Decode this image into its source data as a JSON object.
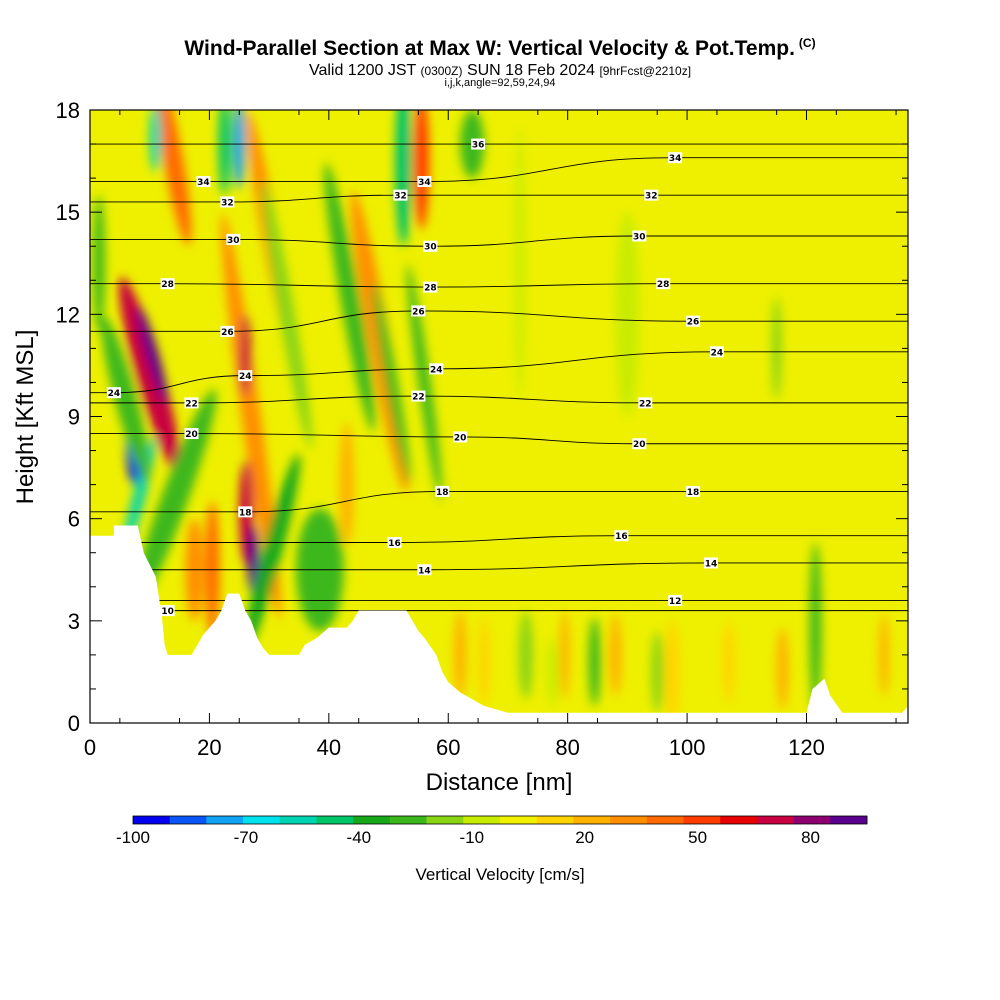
{
  "header": {
    "title": "Wind-Parallel Section at Max W: Vertical Velocity & Pot.Temp.",
    "title_mark": "(C)",
    "valid_prefix": "Valid 1200 JST",
    "valid_utc": "(0300Z)",
    "valid_date": "SUN 18 Feb 2024",
    "valid_fcst": "[9hrFcst@2210z]",
    "params": "i,j,k,angle=92,59,24,94"
  },
  "chart_data": {
    "type": "heatmap",
    "xlabel": "Distance [nm]",
    "ylabel": "Height [Kft MSL]",
    "xlim": [
      0,
      137
    ],
    "ylim": [
      0,
      18
    ],
    "x_ticks": [
      0,
      20,
      40,
      60,
      80,
      100,
      120
    ],
    "y_ticks": [
      0,
      3,
      6,
      9,
      12,
      15,
      18
    ],
    "colorbar": {
      "label": "Vertical Velocity [cm/s]",
      "tick_labels": [
        "-100",
        "-70",
        "-40",
        "-10",
        "20",
        "50",
        "80"
      ],
      "tick_values": [
        -100,
        -70,
        -40,
        -10,
        20,
        50,
        80
      ],
      "range": [
        -100,
        95
      ],
      "colors": [
        "#0000ee",
        "#0a55f5",
        "#12a3f5",
        "#00e2ee",
        "#00d4b0",
        "#00c468",
        "#17a81a",
        "#3cb81c",
        "#8ad416",
        "#c8ec00",
        "#f2f200",
        "#ffd400",
        "#ffb100",
        "#ff8e00",
        "#ff6a00",
        "#ff3c00",
        "#e80000",
        "#c80040",
        "#8e0070",
        "#5a008e"
      ]
    },
    "field_color_default": "#eef000",
    "theta_contour_labels": [
      {
        "v": "36",
        "x": 65,
        "y": 17.0
      },
      {
        "v": "34",
        "x": 19,
        "y": 15.9
      },
      {
        "v": "34",
        "x": 56,
        "y": 15.9
      },
      {
        "v": "34",
        "x": 98,
        "y": 16.6
      },
      {
        "v": "32",
        "x": 23,
        "y": 15.3
      },
      {
        "v": "32",
        "x": 52,
        "y": 15.5
      },
      {
        "v": "32",
        "x": 94,
        "y": 15.5
      },
      {
        "v": "30",
        "x": 24,
        "y": 14.2
      },
      {
        "v": "30",
        "x": 57,
        "y": 14.0
      },
      {
        "v": "30",
        "x": 92,
        "y": 14.3
      },
      {
        "v": "28",
        "x": 13,
        "y": 12.9
      },
      {
        "v": "28",
        "x": 57,
        "y": 12.8
      },
      {
        "v": "28",
        "x": 96,
        "y": 12.9
      },
      {
        "v": "26",
        "x": 23,
        "y": 11.5
      },
      {
        "v": "26",
        "x": 55,
        "y": 12.1
      },
      {
        "v": "26",
        "x": 101,
        "y": 11.8
      },
      {
        "v": "24",
        "x": 4,
        "y": 9.7
      },
      {
        "v": "24",
        "x": 26,
        "y": 10.2
      },
      {
        "v": "24",
        "x": 58,
        "y": 10.4
      },
      {
        "v": "24",
        "x": 105,
        "y": 10.9
      },
      {
        "v": "22",
        "x": 17,
        "y": 9.4
      },
      {
        "v": "22",
        "x": 55,
        "y": 9.6
      },
      {
        "v": "22",
        "x": 93,
        "y": 9.4
      },
      {
        "v": "20",
        "x": 17,
        "y": 8.5
      },
      {
        "v": "20",
        "x": 62,
        "y": 8.4
      },
      {
        "v": "20",
        "x": 92,
        "y": 8.2
      },
      {
        "v": "18",
        "x": 26,
        "y": 6.2
      },
      {
        "v": "18",
        "x": 59,
        "y": 6.8
      },
      {
        "v": "18",
        "x": 101,
        "y": 6.8
      },
      {
        "v": "16",
        "x": 51,
        "y": 5.3
      },
      {
        "v": "16",
        "x": 89,
        "y": 5.5
      },
      {
        "v": "14",
        "x": 56,
        "y": 4.5
      },
      {
        "v": "14",
        "x": 104,
        "y": 4.7
      },
      {
        "v": "12",
        "x": 98,
        "y": 3.6
      },
      {
        "v": "10",
        "x": 13,
        "y": 3.3
      }
    ],
    "terrain_profile": [
      [
        0,
        5.5
      ],
      [
        4,
        5.5
      ],
      [
        4,
        5.8
      ],
      [
        8,
        5.8
      ],
      [
        9,
        5.0
      ],
      [
        11,
        4.3
      ],
      [
        12,
        3.2
      ],
      [
        12.5,
        2.3
      ],
      [
        13,
        2.0
      ],
      [
        17,
        2.0
      ],
      [
        18,
        2.3
      ],
      [
        19,
        2.6
      ],
      [
        21,
        3.0
      ],
      [
        22,
        3.3
      ],
      [
        23,
        3.8
      ],
      [
        25,
        3.8
      ],
      [
        26,
        3.3
      ],
      [
        27,
        3.0
      ],
      [
        28,
        2.5
      ],
      [
        29,
        2.2
      ],
      [
        30,
        2.0
      ],
      [
        35,
        2.0
      ],
      [
        36,
        2.3
      ],
      [
        38,
        2.5
      ],
      [
        40,
        2.8
      ],
      [
        43,
        2.8
      ],
      [
        44,
        3.0
      ],
      [
        45,
        3.3
      ],
      [
        53,
        3.3
      ],
      [
        54,
        3.0
      ],
      [
        55,
        2.7
      ],
      [
        56,
        2.5
      ],
      [
        58,
        2.0
      ],
      [
        59,
        1.5
      ],
      [
        60,
        1.2
      ],
      [
        62,
        0.9
      ],
      [
        64,
        0.7
      ],
      [
        66,
        0.5
      ],
      [
        68,
        0.4
      ],
      [
        70,
        0.3
      ],
      [
        120,
        0.3
      ],
      [
        121,
        1.0
      ],
      [
        123,
        1.3
      ],
      [
        124,
        0.8
      ],
      [
        126,
        0.3
      ],
      [
        136,
        0.3
      ],
      [
        137,
        0.5
      ]
    ],
    "vv_blobs": [
      {
        "x": 10,
        "y": 10.2,
        "rx": 2.2,
        "ry": 3.0,
        "v": 75,
        "rot": -16
      },
      {
        "x": 10.5,
        "y": 10.8,
        "rx": 1.0,
        "ry": 1.5,
        "v": 90,
        "rot": -16
      },
      {
        "x": 7.5,
        "y": 8.2,
        "rx": 1.4,
        "ry": 1.2,
        "v": -98,
        "rot": 0
      },
      {
        "x": 8,
        "y": 6.5,
        "rx": 1.0,
        "ry": 2.0,
        "v": -55,
        "rot": 15
      },
      {
        "x": 9.5,
        "y": 4.8,
        "rx": 0.6,
        "ry": 1.6,
        "v": -80,
        "rot": 15
      },
      {
        "x": 6,
        "y": 9.5,
        "rx": 1.8,
        "ry": 2.5,
        "v": -25,
        "rot": -15
      },
      {
        "x": 14,
        "y": 16.5,
        "rx": 1.6,
        "ry": 2.5,
        "v": 40,
        "rot": -10
      },
      {
        "x": 11,
        "y": 17.2,
        "rx": 1.0,
        "ry": 1.0,
        "v": -60,
        "rot": 0
      },
      {
        "x": 14,
        "y": 6.5,
        "rx": 2.2,
        "ry": 3.5,
        "v": -30,
        "rot": 20
      },
      {
        "x": 17.5,
        "y": 4.5,
        "rx": 1.5,
        "ry": 1.5,
        "v": 35,
        "rot": 0
      },
      {
        "x": 20.5,
        "y": 4.5,
        "rx": 1.2,
        "ry": 2.0,
        "v": 40,
        "rot": 0
      },
      {
        "x": 22.5,
        "y": 17.0,
        "rx": 1.0,
        "ry": 1.5,
        "v": -50,
        "rot": 0
      },
      {
        "x": 27,
        "y": 9.0,
        "rx": 1.6,
        "ry": 6.0,
        "v": 35,
        "rot": -8
      },
      {
        "x": 26,
        "y": 10.8,
        "rx": 0.9,
        "ry": 1.2,
        "v": 70,
        "rot": 0
      },
      {
        "x": 26.2,
        "y": 6.2,
        "rx": 1.2,
        "ry": 1.5,
        "v": 75,
        "rot": 0
      },
      {
        "x": 27.3,
        "y": 4.8,
        "rx": 1.0,
        "ry": 1.0,
        "v": 95,
        "rot": 0
      },
      {
        "x": 25,
        "y": 17.0,
        "rx": 1.0,
        "ry": 1.3,
        "v": -75,
        "rot": 0
      },
      {
        "x": 30.5,
        "y": 5.0,
        "rx": 1.6,
        "ry": 3.0,
        "v": -35,
        "rot": 15
      },
      {
        "x": 30,
        "y": 14.5,
        "rx": 1.4,
        "ry": 3.5,
        "v": 30,
        "rot": -10
      },
      {
        "x": 33,
        "y": 12.0,
        "rx": 1.3,
        "ry": 4.0,
        "v": -20,
        "rot": -10
      },
      {
        "x": 38.5,
        "y": 4.5,
        "rx": 4.0,
        "ry": 1.8,
        "v": -25,
        "rot": 0
      },
      {
        "x": 43.5,
        "y": 12.5,
        "rx": 1.6,
        "ry": 4.0,
        "v": -30,
        "rot": -10
      },
      {
        "x": 43,
        "y": 7.0,
        "rx": 1.2,
        "ry": 1.8,
        "v": 25,
        "rot": 0
      },
      {
        "x": 48.5,
        "y": 11.2,
        "rx": 1.8,
        "ry": 4.5,
        "v": 30,
        "rot": -10
      },
      {
        "x": 50.5,
        "y": 10.0,
        "rx": 1.0,
        "ry": 3.0,
        "v": -30,
        "rot": -10
      },
      {
        "x": 52.5,
        "y": 16.5,
        "rx": 1.4,
        "ry": 2.5,
        "v": -45,
        "rot": 0
      },
      {
        "x": 55.5,
        "y": 16.5,
        "rx": 1.3,
        "ry": 2.0,
        "v": 50,
        "rot": 0
      },
      {
        "x": 56,
        "y": 10.0,
        "rx": 1.0,
        "ry": 3.5,
        "v": -30,
        "rot": -8
      },
      {
        "x": 62,
        "y": 2.0,
        "rx": 1.0,
        "ry": 1.3,
        "v": 25,
        "rot": 0
      },
      {
        "x": 64,
        "y": 17.0,
        "rx": 2.0,
        "ry": 1.0,
        "v": -25,
        "rot": 0
      },
      {
        "x": 66,
        "y": 1.8,
        "rx": 1.0,
        "ry": 1.3,
        "v": 15,
        "rot": 0
      },
      {
        "x": 73,
        "y": 2.0,
        "rx": 1.2,
        "ry": 1.3,
        "v": -20,
        "rot": 0
      },
      {
        "x": 77.5,
        "y": 1.5,
        "rx": 1.0,
        "ry": 1.0,
        "v": -10,
        "rot": 0
      },
      {
        "x": 79.5,
        "y": 2.0,
        "rx": 0.8,
        "ry": 1.3,
        "v": 20,
        "rot": 0
      },
      {
        "x": 84.5,
        "y": 1.8,
        "rx": 1.0,
        "ry": 1.3,
        "v": -25,
        "rot": 0
      },
      {
        "x": 88,
        "y": 2.0,
        "rx": 1.0,
        "ry": 1.2,
        "v": 25,
        "rot": 0
      },
      {
        "x": 97.5,
        "y": 1.5,
        "rx": 1.3,
        "ry": 1.5,
        "v": 15,
        "rot": 0
      },
      {
        "x": 95,
        "y": 1.5,
        "rx": 1.0,
        "ry": 1.2,
        "v": -20,
        "rot": 0
      },
      {
        "x": 107,
        "y": 1.8,
        "rx": 1.0,
        "ry": 1.2,
        "v": 15,
        "rot": 0
      },
      {
        "x": 115,
        "y": 11.0,
        "rx": 0.8,
        "ry": 1.5,
        "v": -20,
        "rot": 0
      },
      {
        "x": 116,
        "y": 1.6,
        "rx": 1.0,
        "ry": 1.2,
        "v": 20,
        "rot": 0
      },
      {
        "x": 121.5,
        "y": 2.8,
        "rx": 1.0,
        "ry": 2.5,
        "v": -30,
        "rot": 0
      },
      {
        "x": 133,
        "y": 2.0,
        "rx": 0.8,
        "ry": 1.2,
        "v": 20,
        "rot": 0
      },
      {
        "x": 72,
        "y": 13.5,
        "rx": 0.8,
        "ry": 4.0,
        "v": -10,
        "rot": 0
      },
      {
        "x": 90,
        "y": 12.0,
        "rx": 2.0,
        "ry": 3.0,
        "v": -10,
        "rot": 0
      },
      {
        "x": 1.5,
        "y": 13.5,
        "rx": 1.0,
        "ry": 2.0,
        "v": -30,
        "rot": 0
      }
    ]
  }
}
